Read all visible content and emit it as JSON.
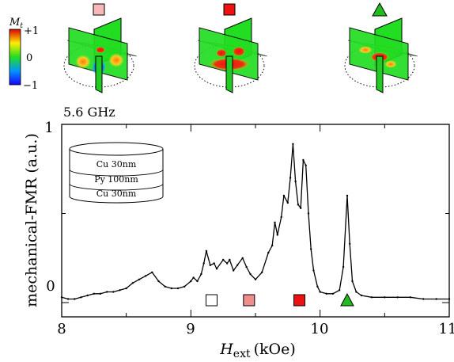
{
  "chart_data": {
    "type": "line",
    "title": "5.6 GHz",
    "xlabel_symbol": "H",
    "xlabel_sub": "ext",
    "xlabel_unit": "(kOe)",
    "ylabel": "mechanical-FMR (a.u.)",
    "xlim": [
      8,
      11
    ],
    "ylim": [
      -0.08,
      1.0
    ],
    "xticks": [
      "8",
      "9",
      "10",
      "11"
    ],
    "yticks": [
      "0",
      "1"
    ],
    "grid": false,
    "layer_stack": [
      "Cu 30nm",
      "Py 100nm",
      "Cu 30nm"
    ],
    "colorbar": {
      "label_symbol": "M",
      "label_sub": "t",
      "max_label": "+1",
      "mid_label": "0",
      "min_label": "−1"
    },
    "series": [
      {
        "color": "#000000",
        "x": [
          8.0,
          8.05,
          8.1,
          8.15,
          8.2,
          8.25,
          8.3,
          8.35,
          8.4,
          8.45,
          8.5,
          8.55,
          8.6,
          8.65,
          8.7,
          8.75,
          8.8,
          8.85,
          8.9,
          8.95,
          9.0,
          9.02,
          9.05,
          9.08,
          9.1,
          9.12,
          9.15,
          9.18,
          9.2,
          9.25,
          9.28,
          9.3,
          9.33,
          9.36,
          9.4,
          9.43,
          9.46,
          9.5,
          9.55,
          9.6,
          9.63,
          9.65,
          9.67,
          9.7,
          9.72,
          9.75,
          9.77,
          9.79,
          9.81,
          9.83,
          9.85,
          9.87,
          9.89,
          9.91,
          9.93,
          9.95,
          9.98,
          10.0,
          10.05,
          10.1,
          10.15,
          10.18,
          10.21,
          10.23,
          10.25,
          10.28,
          10.32,
          10.4,
          10.5,
          10.6,
          10.7,
          10.8,
          10.9,
          11.0
        ],
        "y": [
          0.03,
          0.02,
          0.02,
          0.03,
          0.04,
          0.05,
          0.05,
          0.06,
          0.06,
          0.07,
          0.08,
          0.11,
          0.13,
          0.15,
          0.17,
          0.12,
          0.09,
          0.08,
          0.08,
          0.09,
          0.12,
          0.14,
          0.12,
          0.16,
          0.22,
          0.29,
          0.21,
          0.22,
          0.19,
          0.24,
          0.22,
          0.24,
          0.18,
          0.21,
          0.25,
          0.2,
          0.16,
          0.13,
          0.17,
          0.28,
          0.32,
          0.45,
          0.38,
          0.48,
          0.6,
          0.56,
          0.7,
          0.89,
          0.68,
          0.55,
          0.53,
          0.8,
          0.77,
          0.5,
          0.3,
          0.18,
          0.09,
          0.06,
          0.05,
          0.05,
          0.07,
          0.2,
          0.6,
          0.33,
          0.12,
          0.06,
          0.04,
          0.03,
          0.03,
          0.03,
          0.03,
          0.02,
          0.02,
          0.02
        ]
      }
    ],
    "markers": [
      {
        "x": 9.16,
        "shape": "square",
        "fill": "#ffffff"
      },
      {
        "x": 9.45,
        "shape": "square",
        "fill": "#f08c8c"
      },
      {
        "x": 9.84,
        "shape": "square",
        "fill": "#ee1111"
      },
      {
        "x": 10.21,
        "shape": "triangle",
        "fill": "#22bb22"
      }
    ],
    "insets": [
      {
        "icon": "square",
        "fill": "#f6b8b8"
      },
      {
        "icon": "square",
        "fill": "#ee1111"
      },
      {
        "icon": "triangle",
        "fill": "#22bb22"
      }
    ]
  }
}
